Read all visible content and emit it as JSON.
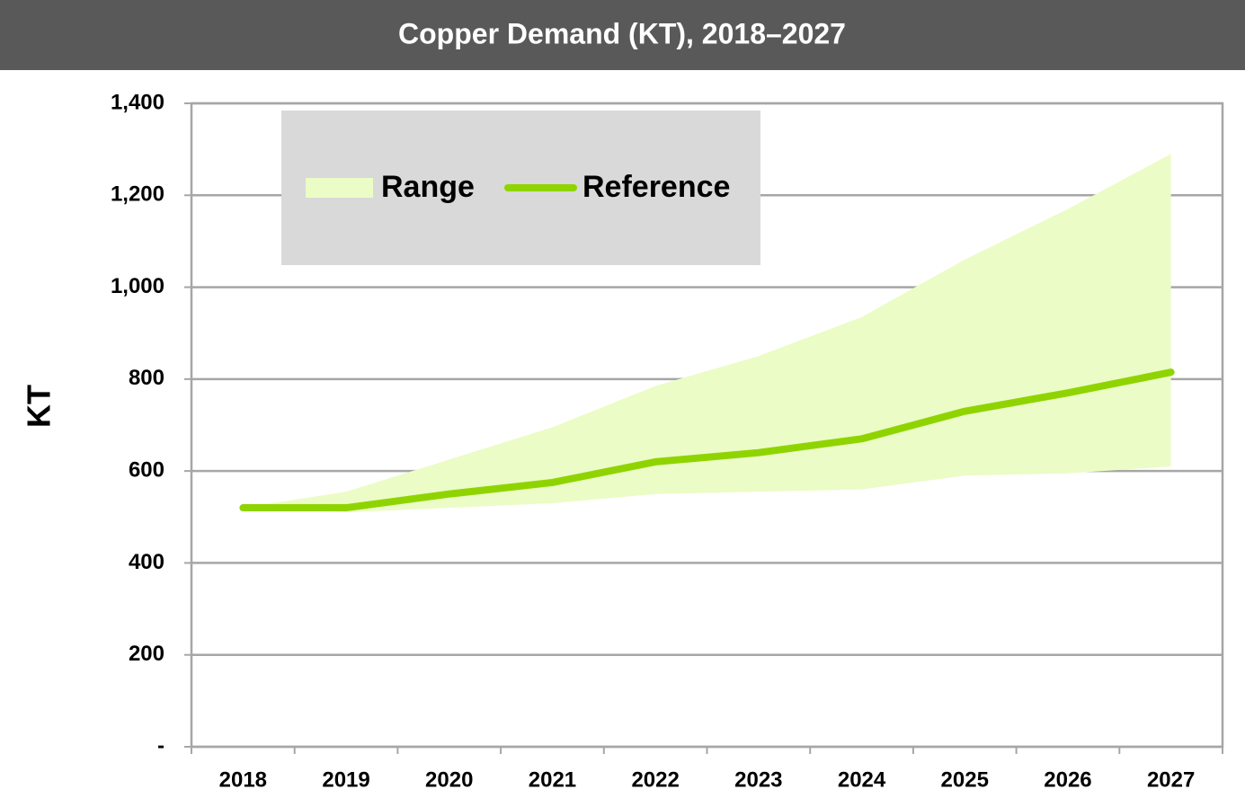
{
  "chart_data": {
    "type": "range-line",
    "title": "Copper Demand (KT), 2018–2027",
    "y_label": "KT",
    "categories": [
      "2018",
      "2019",
      "2020",
      "2021",
      "2022",
      "2023",
      "2024",
      "2025",
      "2026",
      "2027"
    ],
    "series": [
      {
        "name": "Range",
        "color": "#ebfcc6",
        "lower": [
          520,
          510,
          520,
          530,
          550,
          555,
          560,
          590,
          595,
          610
        ],
        "upper": [
          520,
          555,
          625,
          695,
          785,
          850,
          935,
          1060,
          1170,
          1290
        ]
      },
      {
        "name": "Reference",
        "color": "#8fd400",
        "values": [
          520,
          520,
          550,
          575,
          620,
          640,
          670,
          730,
          770,
          815
        ]
      }
    ],
    "ylim": [
      0,
      1400
    ],
    "yticks": [
      {
        "value": 0,
        "label": "-"
      },
      200,
      400,
      600,
      800,
      {
        "value": 1000,
        "label": "1,000"
      },
      {
        "value": 1200,
        "label": "1,200"
      },
      {
        "value": 1400,
        "label": "1,400"
      }
    ],
    "grid": true,
    "legend": "top-left"
  }
}
